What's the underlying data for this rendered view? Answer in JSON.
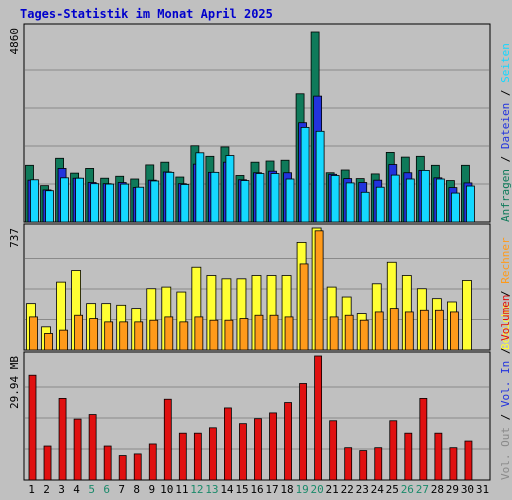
{
  "title": "Tages-Statistik im Monat April 2025",
  "colors": {
    "background": "#c0c0c0",
    "title": "#0000cc",
    "frame": "#000000",
    "grid": "#8a8a8a",
    "anfragen": "#0f7a5a",
    "dateien": "#2233dd",
    "seiten": "#14d8ff",
    "besuche": "#ffff33",
    "rechner": "#ff9a1a",
    "kbytes": "#e01010",
    "day_normal": "#000000",
    "day_weekend": "#1a8a6a"
  },
  "chart_data": [
    {
      "type": "bar",
      "panel": "top",
      "axis_label": "4860",
      "ylim": [
        0,
        4860
      ],
      "categories": [
        "1",
        "2",
        "3",
        "4",
        "5",
        "6",
        "7",
        "8",
        "9",
        "10",
        "11",
        "12",
        "13",
        "14",
        "15",
        "16",
        "17",
        "18",
        "19",
        "20",
        "21",
        "22",
        "23",
        "24",
        "25",
        "26",
        "27",
        "28",
        "29",
        "30",
        "31"
      ],
      "series": [
        {
          "name": "Anfragen",
          "color_key": "anfragen",
          "values": [
            1450,
            930,
            1630,
            1250,
            1370,
            1120,
            1170,
            1100,
            1460,
            1530,
            1150,
            1950,
            1680,
            1920,
            1190,
            1530,
            1560,
            1580,
            3280,
            4860,
            1260,
            1330,
            1110,
            1230,
            1780,
            1660,
            1680,
            1450,
            1060,
            1450,
            0
          ]
        },
        {
          "name": "Dateien",
          "color_key": "dateien",
          "values": [
            1070,
            820,
            1370,
            1120,
            1010,
            980,
            1010,
            880,
            1070,
            1280,
            980,
            1480,
            1270,
            1530,
            1080,
            1260,
            1300,
            1260,
            2540,
            3220,
            1220,
            1110,
            1010,
            1070,
            1470,
            1260,
            1320,
            1130,
            880,
            1000,
            0
          ]
        },
        {
          "name": "Seiten",
          "color_key": "seiten",
          "values": [
            1080,
            800,
            1130,
            1120,
            980,
            970,
            970,
            890,
            1050,
            1270,
            960,
            1770,
            1270,
            1700,
            1060,
            1240,
            1240,
            1100,
            2420,
            2320,
            1190,
            1000,
            760,
            890,
            1200,
            1100,
            1320,
            1100,
            740,
            920,
            0
          ]
        }
      ]
    },
    {
      "type": "bar",
      "panel": "middle",
      "axis_label": "737",
      "ylim": [
        0,
        737
      ],
      "categories": [
        "1",
        "2",
        "3",
        "4",
        "5",
        "6",
        "7",
        "8",
        "9",
        "10",
        "11",
        "12",
        "13",
        "14",
        "15",
        "16",
        "17",
        "18",
        "19",
        "20",
        "21",
        "22",
        "23",
        "24",
        "25",
        "26",
        "27",
        "28",
        "29",
        "30",
        "31"
      ],
      "series": [
        {
          "name": "Besuche",
          "color_key": "besuche",
          "values": [
            280,
            140,
            410,
            480,
            280,
            280,
            270,
            250,
            370,
            380,
            350,
            500,
            450,
            430,
            430,
            450,
            450,
            450,
            650,
            740,
            380,
            320,
            220,
            400,
            530,
            450,
            370,
            310,
            290,
            420,
            0
          ]
        },
        {
          "name": "Rechner",
          "color_key": "rechner",
          "values": [
            200,
            100,
            120,
            210,
            190,
            170,
            170,
            170,
            180,
            200,
            170,
            200,
            180,
            180,
            190,
            210,
            210,
            200,
            520,
            720,
            200,
            210,
            180,
            230,
            250,
            230,
            240,
            240,
            230,
            0,
            0
          ]
        }
      ]
    },
    {
      "type": "bar",
      "panel": "bottom",
      "axis_label": "29.94 MB",
      "ylim": [
        0,
        29.94
      ],
      "categories": [
        "1",
        "2",
        "3",
        "4",
        "5",
        "6",
        "7",
        "8",
        "9",
        "10",
        "11",
        "12",
        "13",
        "14",
        "15",
        "16",
        "17",
        "18",
        "19",
        "20",
        "21",
        "22",
        "23",
        "24",
        "25",
        "26",
        "27",
        "28",
        "29",
        "30",
        "31"
      ],
      "series": [
        {
          "name": "kBytes",
          "color_key": "kbytes",
          "values": [
            25.3,
            8.2,
            19.7,
            14.7,
            15.8,
            8.2,
            5.9,
            6.3,
            8.7,
            19.5,
            11.3,
            11.3,
            12.6,
            17.4,
            13.6,
            14.8,
            16.2,
            18.7,
            23.3,
            29.94,
            14.3,
            7.8,
            7.1,
            7.8,
            14.3,
            11.3,
            19.7,
            11.3,
            7.8,
            9.4,
            0
          ]
        }
      ]
    }
  ],
  "x_tick_labels": [
    {
      "label": "1",
      "weekend": false
    },
    {
      "label": "2",
      "weekend": false
    },
    {
      "label": "3",
      "weekend": false
    },
    {
      "label": "4",
      "weekend": false
    },
    {
      "label": "5",
      "weekend": true
    },
    {
      "label": "6",
      "weekend": true
    },
    {
      "label": "7",
      "weekend": false
    },
    {
      "label": "8",
      "weekend": false
    },
    {
      "label": "9",
      "weekend": false
    },
    {
      "label": "10",
      "weekend": false
    },
    {
      "label": "11",
      "weekend": false
    },
    {
      "label": "12",
      "weekend": true
    },
    {
      "label": "13",
      "weekend": true
    },
    {
      "label": "14",
      "weekend": false
    },
    {
      "label": "15",
      "weekend": false
    },
    {
      "label": "16",
      "weekend": false
    },
    {
      "label": "17",
      "weekend": false
    },
    {
      "label": "18",
      "weekend": false
    },
    {
      "label": "19",
      "weekend": true
    },
    {
      "label": "20",
      "weekend": true
    },
    {
      "label": "21",
      "weekend": false
    },
    {
      "label": "22",
      "weekend": false
    },
    {
      "label": "23",
      "weekend": false
    },
    {
      "label": "24",
      "weekend": false
    },
    {
      "label": "25",
      "weekend": false
    },
    {
      "label": "26",
      "weekend": true
    },
    {
      "label": "27",
      "weekend": true
    },
    {
      "label": "28",
      "weekend": false
    },
    {
      "label": "29",
      "weekend": false
    },
    {
      "label": "30",
      "weekend": false
    },
    {
      "label": "31",
      "weekend": false
    }
  ],
  "legends": {
    "top": [
      {
        "text": "Anfragen",
        "color_key": "anfragen"
      },
      {
        "text": " / ",
        "color_key": "frame"
      },
      {
        "text": "Dateien",
        "color_key": "dateien"
      },
      {
        "text": " / ",
        "color_key": "frame"
      },
      {
        "text": "Seiten",
        "color_key": "seiten"
      }
    ],
    "middle": [
      {
        "text": "Besuche",
        "color_key": "besuche"
      },
      {
        "text": " / ",
        "color_key": "frame"
      },
      {
        "text": "Rechner",
        "color_key": "rechner"
      }
    ],
    "bottom": [
      {
        "text": "Vol. Out",
        "color_key": "grid"
      },
      {
        "text": " / ",
        "color_key": "frame"
      },
      {
        "text": "Vol. In",
        "color_key": "dateien"
      },
      {
        "text": " / ",
        "color_key": "frame"
      },
      {
        "text": "Volumen",
        "color_key": "kbytes"
      }
    ]
  }
}
